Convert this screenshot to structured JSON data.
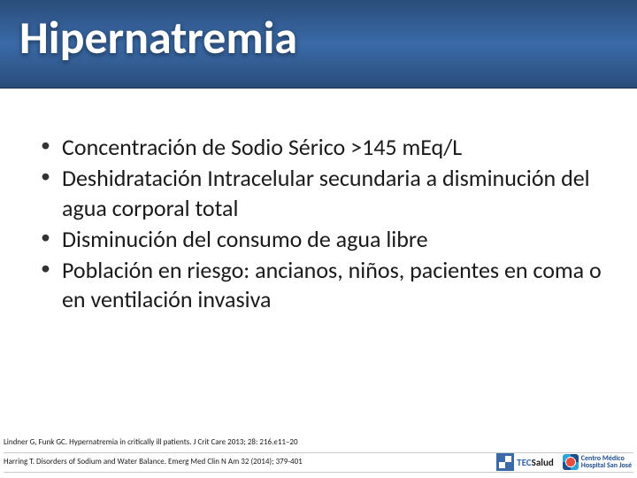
{
  "title": "Hipernatremia",
  "bullets": [
    "Concentración de Sodio Sérico >145 mEq/L",
    "Deshidratación Intracelular secundaria a disminución del agua corporal total",
    "Disminución del consumo de agua libre",
    "Población en riesgo: ancianos, niños, pacientes en coma o en ventilación invasiva"
  ],
  "references": [
    "Lindner G, Funk GC. Hypernatremia in critically ill patients. J Crit Care 2013; 28: 216.e11–20",
    "Harring T. Disorders of Sodium and Water Balance. Emerg Med Clin N Am 32 (2014); 379-401"
  ],
  "logos": {
    "tec_label_a": "TEC",
    "tec_label_b": "Salud",
    "hospital_line1": "Centro Médico",
    "hospital_line2": "Hospital San José"
  },
  "style": {
    "slide_w": 720,
    "slide_h": 540,
    "title_bg_top": "#2a4d7a",
    "title_bg_mid": "#3a6aa8",
    "title_color": "#ffffff",
    "title_fontsize": 52,
    "title_weight": 700,
    "body_color": "#1a1a1a",
    "body_fontsize": 26,
    "bullet_color": "#333333",
    "ref_fontsize": 9,
    "ref_divider": "#c8c8c8",
    "background": "#ffffff",
    "brand_blue": "#1f4e8c",
    "brand_cyan": "#2aa4d8",
    "brand_red": "#e84c3d"
  }
}
